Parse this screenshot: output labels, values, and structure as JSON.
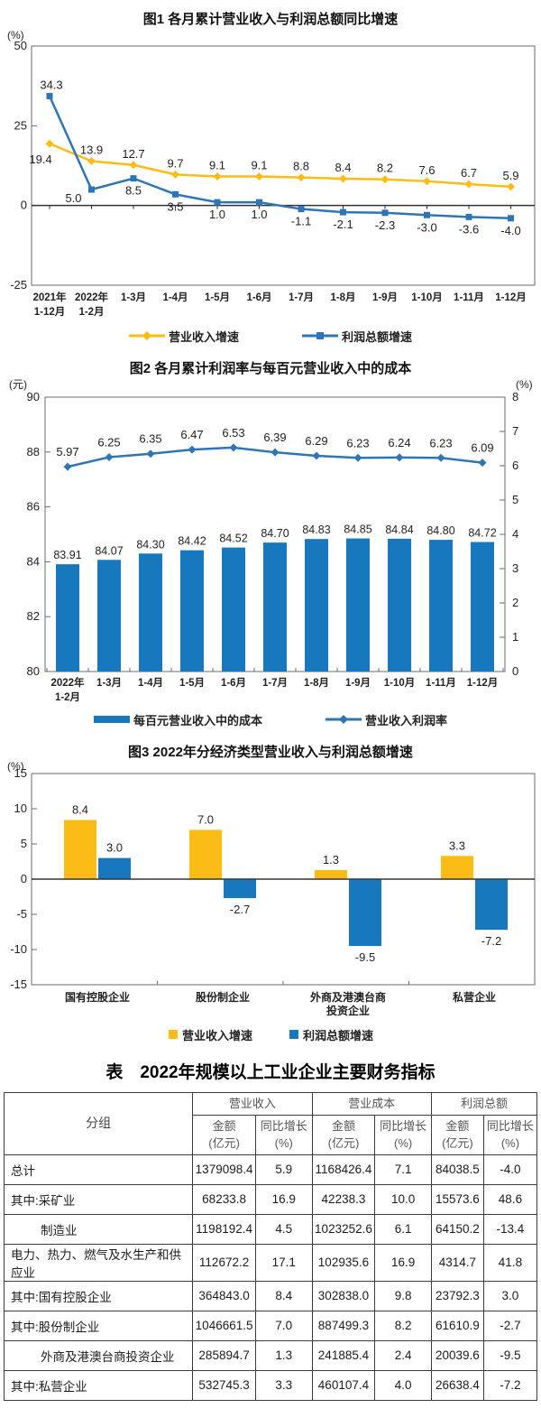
{
  "colors": {
    "yellow": "#FBBC16",
    "blue_line": "#2E75B6",
    "blue_bar": "#1878BE",
    "axis": "#6b6b6b",
    "zero_line": "#333333"
  },
  "chart_data": [
    {
      "id": "chart1",
      "type": "line",
      "title": "图1  各月累计营业收入与利润总额同比增速",
      "unit_left": "(%)",
      "ylim": [
        -25,
        50
      ],
      "yticks": [
        50,
        25,
        0,
        -25
      ],
      "grid": false,
      "legend_position": "bottom",
      "categories": [
        [
          "2021年",
          "1-12月"
        ],
        [
          "2022年",
          "1-2月"
        ],
        [
          "1-3月"
        ],
        [
          "1-4月"
        ],
        [
          "1-5月"
        ],
        [
          "1-6月"
        ],
        [
          "1-7月"
        ],
        [
          "1-8月"
        ],
        [
          "1-9月"
        ],
        [
          "1-10月"
        ],
        [
          "1-11月"
        ],
        [
          "1-12月"
        ]
      ],
      "series": [
        {
          "name": "营业收入增速",
          "color_key": "yellow",
          "marker": "diamond",
          "values": [
            19.4,
            13.9,
            12.7,
            9.7,
            9.1,
            9.1,
            8.8,
            8.4,
            8.2,
            7.6,
            6.7,
            5.9
          ]
        },
        {
          "name": "利润总额增速",
          "color_key": "blue_line",
          "marker": "square",
          "values": [
            34.3,
            5.0,
            8.5,
            3.5,
            1.0,
            1.0,
            -1.1,
            -2.1,
            -2.3,
            -3.0,
            -3.6,
            -4.0
          ]
        }
      ]
    },
    {
      "id": "chart2",
      "type": "bar-line",
      "title": "图2  各月累计利润率与每百元营业收入中的成本",
      "unit_left": "(元)",
      "unit_right": "(%)",
      "ylim_left": [
        80,
        90
      ],
      "yticks_left": [
        90,
        88,
        86,
        84,
        82,
        80
      ],
      "ylim_right": [
        0,
        8
      ],
      "yticks_right": [
        8,
        7,
        6,
        5,
        4,
        3,
        2,
        1,
        0
      ],
      "grid": false,
      "legend_position": "bottom",
      "categories": [
        [
          "2022年",
          "1-2月"
        ],
        [
          "1-3月"
        ],
        [
          "1-4月"
        ],
        [
          "1-5月"
        ],
        [
          "1-6月"
        ],
        [
          "1-7月"
        ],
        [
          "1-8月"
        ],
        [
          "1-9月"
        ],
        [
          "1-10月"
        ],
        [
          "1-11月"
        ],
        [
          "1-12月"
        ]
      ],
      "bar_series": {
        "name": "每百元营业收入中的成本",
        "color_key": "blue_bar",
        "values": [
          83.91,
          84.07,
          84.3,
          84.42,
          84.52,
          84.7,
          84.83,
          84.85,
          84.84,
          84.8,
          84.72
        ]
      },
      "line_series": {
        "name": "营业收入利润率",
        "color_key": "blue_line",
        "marker": "diamond",
        "values": [
          5.97,
          6.25,
          6.35,
          6.47,
          6.53,
          6.39,
          6.29,
          6.23,
          6.24,
          6.23,
          6.09
        ]
      }
    },
    {
      "id": "chart3",
      "type": "grouped-bar",
      "title": "图3  2022年分经济类型营业收入与利润总额增速",
      "unit_left": "(%)",
      "ylim": [
        -15,
        15
      ],
      "yticks": [
        15,
        10,
        5,
        0,
        -5,
        -10,
        -15
      ],
      "grid": false,
      "legend_position": "bottom",
      "categories": [
        [
          "国有控股企业"
        ],
        [
          "股份制企业"
        ],
        [
          "外商及港澳台商",
          "投资企业"
        ],
        [
          "私营企业"
        ]
      ],
      "series": [
        {
          "name": "营业收入增速",
          "color_key": "yellow",
          "values": [
            8.4,
            7.0,
            1.3,
            3.3
          ]
        },
        {
          "name": "利润总额增速",
          "color_key": "blue_bar",
          "values": [
            3.0,
            -2.7,
            -9.5,
            -7.2
          ]
        }
      ]
    }
  ],
  "table": {
    "title": "表　2022年规模以上工业企业主要财务指标",
    "col_group_label": "分组",
    "groups": [
      "营业收入",
      "营业成本",
      "利润总额"
    ],
    "amount_header": [
      "金额",
      "(亿元)"
    ],
    "growth_header": [
      "同比增长",
      "(%)"
    ],
    "rows": [
      {
        "name": "总计",
        "indent": 0,
        "values": [
          "1379098.4",
          "5.9",
          "1168426.4",
          "7.1",
          "84038.5",
          "-4.0"
        ]
      },
      {
        "name": "其中:采矿业",
        "indent": 0,
        "values": [
          "68233.8",
          "16.9",
          "42238.3",
          "10.0",
          "15573.6",
          "48.6"
        ]
      },
      {
        "name": "制造业",
        "indent": 1,
        "values": [
          "1198192.4",
          "4.5",
          "1023252.6",
          "6.1",
          "64150.2",
          "-13.4"
        ]
      },
      {
        "name": "电力、热力、燃气及水生产和供应业",
        "indent": 0,
        "values": [
          "112672.2",
          "17.1",
          "102935.6",
          "16.9",
          "4314.7",
          "41.8"
        ]
      },
      {
        "name": "其中:国有控股企业",
        "indent": 0,
        "values": [
          "364843.0",
          "8.4",
          "302838.0",
          "9.8",
          "23792.3",
          "3.0"
        ]
      },
      {
        "name": "其中:股份制企业",
        "indent": 0,
        "values": [
          "1046661.5",
          "7.0",
          "887499.3",
          "8.2",
          "61610.9",
          "-2.7"
        ]
      },
      {
        "name": "外商及港澳台商投资企业",
        "indent": 1,
        "values": [
          "285894.7",
          "1.3",
          "241885.4",
          "2.4",
          "20039.6",
          "-9.5"
        ]
      },
      {
        "name": "其中:私营企业",
        "indent": 0,
        "values": [
          "532745.3",
          "3.3",
          "460107.4",
          "4.0",
          "26638.4",
          "-7.2"
        ]
      }
    ]
  }
}
